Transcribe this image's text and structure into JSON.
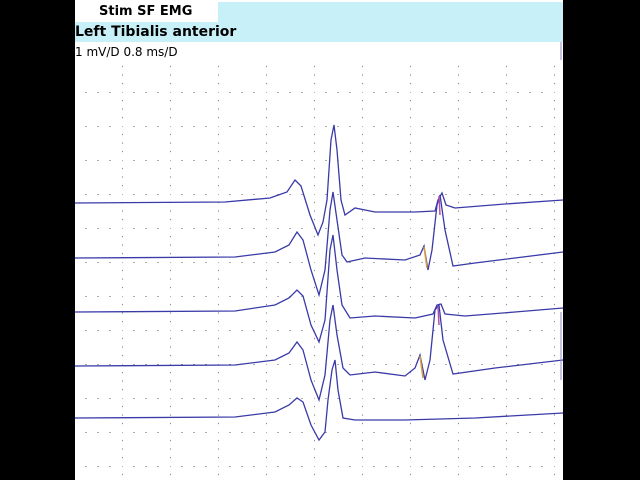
{
  "header": {
    "mode": "Stim SF EMG",
    "muscle": "Left Tibialis anterior",
    "scale": "1 mV/D 0.8 ms/D"
  }
}
